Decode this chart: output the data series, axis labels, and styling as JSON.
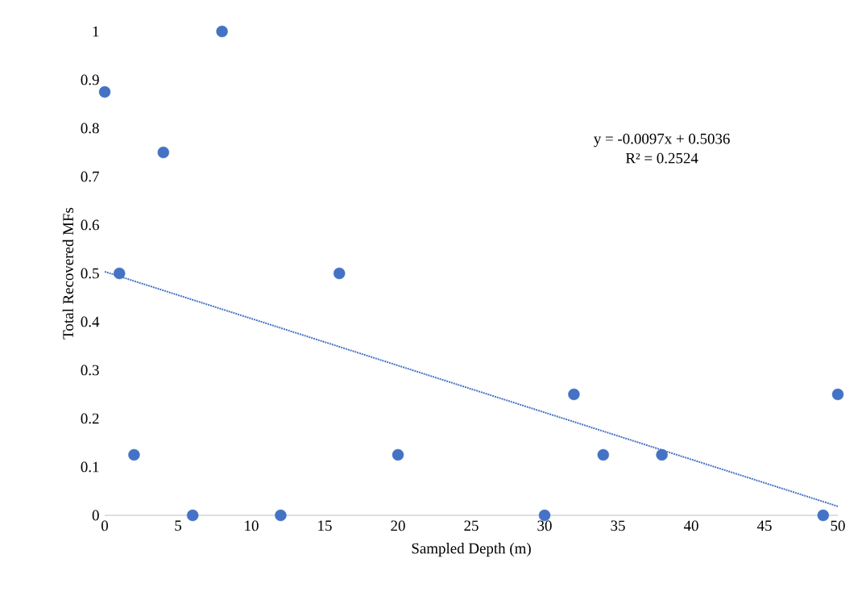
{
  "chart_data": {
    "type": "scatter",
    "xlabel": "Sampled Depth (m)",
    "ylabel": "Total Recovered MFs",
    "xlim": [
      0,
      50
    ],
    "ylim": [
      0,
      1
    ],
    "xticks": [
      0,
      5,
      10,
      15,
      20,
      25,
      30,
      35,
      40,
      45,
      50
    ],
    "yticks": [
      0,
      0.1,
      0.2,
      0.3,
      0.4,
      0.5,
      0.6,
      0.7,
      0.8,
      0.9,
      1
    ],
    "marker": "circle",
    "series": [
      {
        "color": "#4472c4",
        "x": [
          0,
          1,
          2,
          4,
          6,
          8,
          12,
          16,
          20,
          30,
          32,
          34,
          38,
          49,
          50
        ],
        "values": [
          0.875,
          0.5,
          0.125,
          0.75,
          0,
          1,
          0,
          0.5,
          0.125,
          0,
          0.25,
          0.125,
          0.125,
          0,
          0.25
        ]
      },
      {
        "type": "line",
        "color": "#4472c4",
        "line_style": "dotted",
        "marker": "none",
        "x": [
          0,
          50
        ],
        "values": [
          0.5036,
          0.0186
        ]
      }
    ],
    "annotations": [
      "y = -0.0097x + 0.5036",
      "R² = 0.2524"
    ]
  }
}
